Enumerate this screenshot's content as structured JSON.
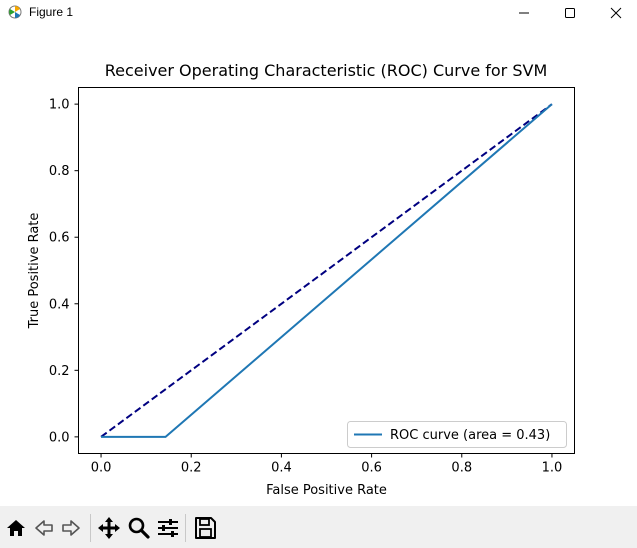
{
  "window": {
    "title": "Figure 1",
    "buttons": [
      "minimize-icon",
      "maximize-icon",
      "close-icon"
    ]
  },
  "toolbar": {
    "icons": [
      "home-icon",
      "back-arrow-icon",
      "forward-arrow-icon",
      "pan-icon",
      "zoom-icon",
      "configure-subplots-icon",
      "save-icon"
    ]
  },
  "chart_data": {
    "type": "line",
    "title": "Receiver Operating Characteristic (ROC) Curve for SVM",
    "xlabel": "False Positive Rate",
    "ylabel": "True Positive Rate",
    "xlim": [
      -0.05,
      1.05
    ],
    "ylim": [
      -0.05,
      1.05
    ],
    "xticks": [
      "0.0",
      "0.2",
      "0.4",
      "0.6",
      "0.8",
      "1.0"
    ],
    "yticks": [
      "0.0",
      "0.2",
      "0.4",
      "0.6",
      "0.8",
      "1.0"
    ],
    "grid": false,
    "legend_position": "lower-right",
    "series": [
      {
        "name": "ROC curve (area = 0.43)",
        "color": "#1f77b4",
        "style": "solid",
        "x": [
          0.0,
          0.143,
          1.0
        ],
        "y": [
          0.0,
          0.0,
          1.0
        ]
      },
      {
        "color": "#000080",
        "style": "dashed",
        "x": [
          0.0,
          1.0
        ],
        "y": [
          0.0,
          1.0
        ]
      }
    ]
  }
}
